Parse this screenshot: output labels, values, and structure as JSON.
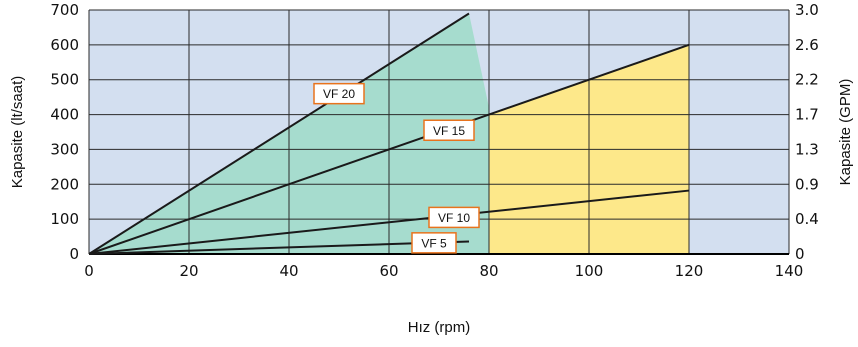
{
  "chart_data": {
    "type": "line",
    "xlabel": "Hız (rpm)",
    "ylabel": "Kapasite (lt/saat)",
    "y2label": "Kapasite (GPM)",
    "xlim": [
      0,
      140
    ],
    "ylim": [
      0,
      700
    ],
    "x_ticks": [
      "0",
      "20",
      "40",
      "60",
      "80",
      "100",
      "120",
      "140"
    ],
    "y_ticks": [
      "0",
      "100",
      "200",
      "300",
      "400",
      "500",
      "600",
      "700"
    ],
    "y2_ticks": [
      "0",
      "0.4",
      "0.9",
      "1.3",
      "1.7",
      "2.2",
      "2.6",
      "3.0"
    ],
    "grid": true,
    "colors": {
      "background": "#d3dff0",
      "teal_region": "#a6dcce",
      "yellow_region": "#fde88a",
      "grid": "#2a2a2a",
      "line": "#1a1a1a",
      "label_border": "#e8731d"
    },
    "regions": [
      {
        "color": "teal_region",
        "points": [
          [
            0,
            0
          ],
          [
            76,
            690
          ],
          [
            80,
            420
          ],
          [
            80,
            0
          ]
        ]
      },
      {
        "color": "yellow_region",
        "points": [
          [
            80,
            0
          ],
          [
            80,
            400
          ],
          [
            120,
            600
          ],
          [
            120,
            0
          ]
        ]
      }
    ],
    "series": [
      {
        "name": "VF 20",
        "points": [
          [
            0,
            0
          ],
          [
            76,
            690
          ]
        ],
        "label_at": [
          50,
          460
        ]
      },
      {
        "name": "VF 15",
        "points": [
          [
            0,
            0
          ],
          [
            120,
            600
          ]
        ],
        "label_at": [
          72,
          355
        ]
      },
      {
        "name": "VF 10",
        "points": [
          [
            0,
            0
          ],
          [
            120,
            182
          ]
        ],
        "label_at": [
          73,
          105
        ]
      },
      {
        "name": "VF 5",
        "points": [
          [
            0,
            0
          ],
          [
            76,
            36
          ]
        ],
        "label_at": [
          69,
          32
        ]
      }
    ]
  }
}
